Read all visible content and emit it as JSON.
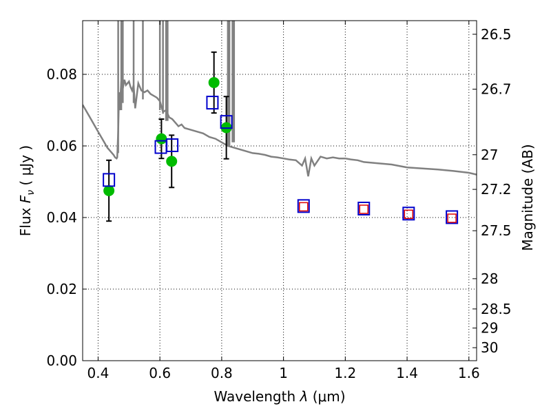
{
  "chart_data": {
    "type": "scatter",
    "title": "",
    "xlabel_text": "Wavelength",
    "xlabel_symbol": "λ",
    "xlabel_unit": "(μm)",
    "ylabel_text": "Flux",
    "ylabel_symbol": "F",
    "ylabel_subscript": "ν",
    "ylabel_unit": "( μJy )",
    "y2label": "Magnitude (AB)",
    "xlim": [
      0.35,
      1.625
    ],
    "ylim": [
      0.0,
      0.095
    ],
    "grid": true,
    "x_ticks": [
      0.4,
      0.6,
      0.8,
      1.0,
      1.2,
      1.4,
      1.6
    ],
    "x_tick_labels": [
      "0.4",
      "0.6",
      "0.8",
      "1",
      "1.2",
      "1.4",
      "1.6"
    ],
    "y_ticks": [
      0.0,
      0.02,
      0.04,
      0.06,
      0.08
    ],
    "y_tick_labels": [
      "0.00",
      "0.02",
      "0.04",
      "0.06",
      "0.08"
    ],
    "mag_ticks": [
      26.5,
      26.7,
      27.0,
      27.2,
      27.5,
      28.0,
      28.5,
      29.0,
      30.0
    ],
    "mag_tick_labels": [
      "26.5",
      "26.7",
      "27",
      "27.2",
      "27.5",
      "28",
      "28.5",
      "29",
      "30"
    ],
    "colors": {
      "model": "#808080",
      "observed": "#00bb00",
      "model_phot": "#0000cc",
      "inner_phot": "#dd0000",
      "errorbar": "#000000"
    },
    "series": [
      {
        "name": "model spectrum",
        "kind": "line",
        "x": [
          0.35,
          0.36,
          0.37,
          0.38,
          0.39,
          0.4,
          0.41,
          0.42,
          0.43,
          0.44,
          0.45,
          0.455,
          0.46,
          0.462,
          0.465,
          0.468,
          0.47,
          0.475,
          0.48,
          0.485,
          0.49,
          0.495,
          0.5,
          0.505,
          0.51,
          0.515,
          0.52,
          0.53,
          0.54,
          0.55,
          0.56,
          0.57,
          0.58,
          0.59,
          0.6,
          0.61,
          0.62,
          0.63,
          0.64,
          0.65,
          0.66,
          0.67,
          0.68,
          0.7,
          0.72,
          0.74,
          0.76,
          0.78,
          0.8,
          0.82,
          0.84,
          0.86,
          0.88,
          0.9,
          0.92,
          0.94,
          0.96,
          0.98,
          1.0,
          1.02,
          1.04,
          1.06,
          1.07,
          1.08,
          1.09,
          1.1,
          1.12,
          1.14,
          1.16,
          1.18,
          1.2,
          1.22,
          1.24,
          1.26,
          1.3,
          1.35,
          1.4,
          1.45,
          1.5,
          1.55,
          1.6,
          1.625
        ],
        "y": [
          0.0715,
          0.07,
          0.0685,
          0.067,
          0.0655,
          0.064,
          0.0625,
          0.061,
          0.0595,
          0.0585,
          0.0575,
          0.0568,
          0.0565,
          0.0568,
          0.064,
          0.075,
          0.07,
          0.078,
          0.076,
          0.0785,
          0.077,
          0.0775,
          0.078,
          0.0765,
          0.0755,
          0.077,
          0.0705,
          0.0775,
          0.0755,
          0.075,
          0.0755,
          0.0745,
          0.074,
          0.0735,
          0.0725,
          0.0695,
          0.07,
          0.068,
          0.0675,
          0.0665,
          0.0655,
          0.066,
          0.065,
          0.0645,
          0.064,
          0.0635,
          0.0625,
          0.062,
          0.061,
          0.06,
          0.0595,
          0.059,
          0.0585,
          0.058,
          0.0578,
          0.0575,
          0.057,
          0.0568,
          0.0565,
          0.0562,
          0.056,
          0.0545,
          0.0565,
          0.0515,
          0.0565,
          0.0545,
          0.057,
          0.0565,
          0.0568,
          0.0565,
          0.0565,
          0.0562,
          0.056,
          0.0555,
          0.0552,
          0.0548,
          0.054,
          0.0537,
          0.0534,
          0.053,
          0.0525,
          0.052
        ]
      },
      {
        "name": "emission lines",
        "kind": "spikes",
        "x": [
          0.465,
          0.475,
          0.48,
          0.515,
          0.545,
          0.6,
          0.61,
          0.62,
          0.625,
          0.82,
          0.825,
          0.835,
          0.84
        ],
        "y_base": [
          0.058,
          0.07,
          0.072,
          0.072,
          0.073,
          0.07,
          0.069,
          0.067,
          0.067,
          0.06,
          0.06,
          0.061,
          0.061
        ],
        "y_top": 0.095
      },
      {
        "name": "observed flux",
        "kind": "points",
        "x": [
          0.435,
          0.605,
          0.638,
          0.775,
          0.815
        ],
        "y": [
          0.0475,
          0.062,
          0.0557,
          0.0777,
          0.0651
        ],
        "yerr": [
          0.0085,
          0.0055,
          0.0073,
          0.0085,
          0.0087
        ]
      },
      {
        "name": "model photometry",
        "kind": "open-squares",
        "x": [
          0.435,
          0.603,
          0.64,
          0.77,
          0.815,
          1.065,
          1.26,
          1.405,
          1.545
        ],
        "y": [
          0.0505,
          0.0597,
          0.0602,
          0.0721,
          0.0667,
          0.0432,
          0.0425,
          0.0411,
          0.0401
        ]
      },
      {
        "name": "inner photometry",
        "kind": "small-squares",
        "x": [
          1.065,
          1.26,
          1.405,
          1.545
        ],
        "y": [
          0.043,
          0.0423,
          0.0409,
          0.0398
        ]
      }
    ]
  }
}
